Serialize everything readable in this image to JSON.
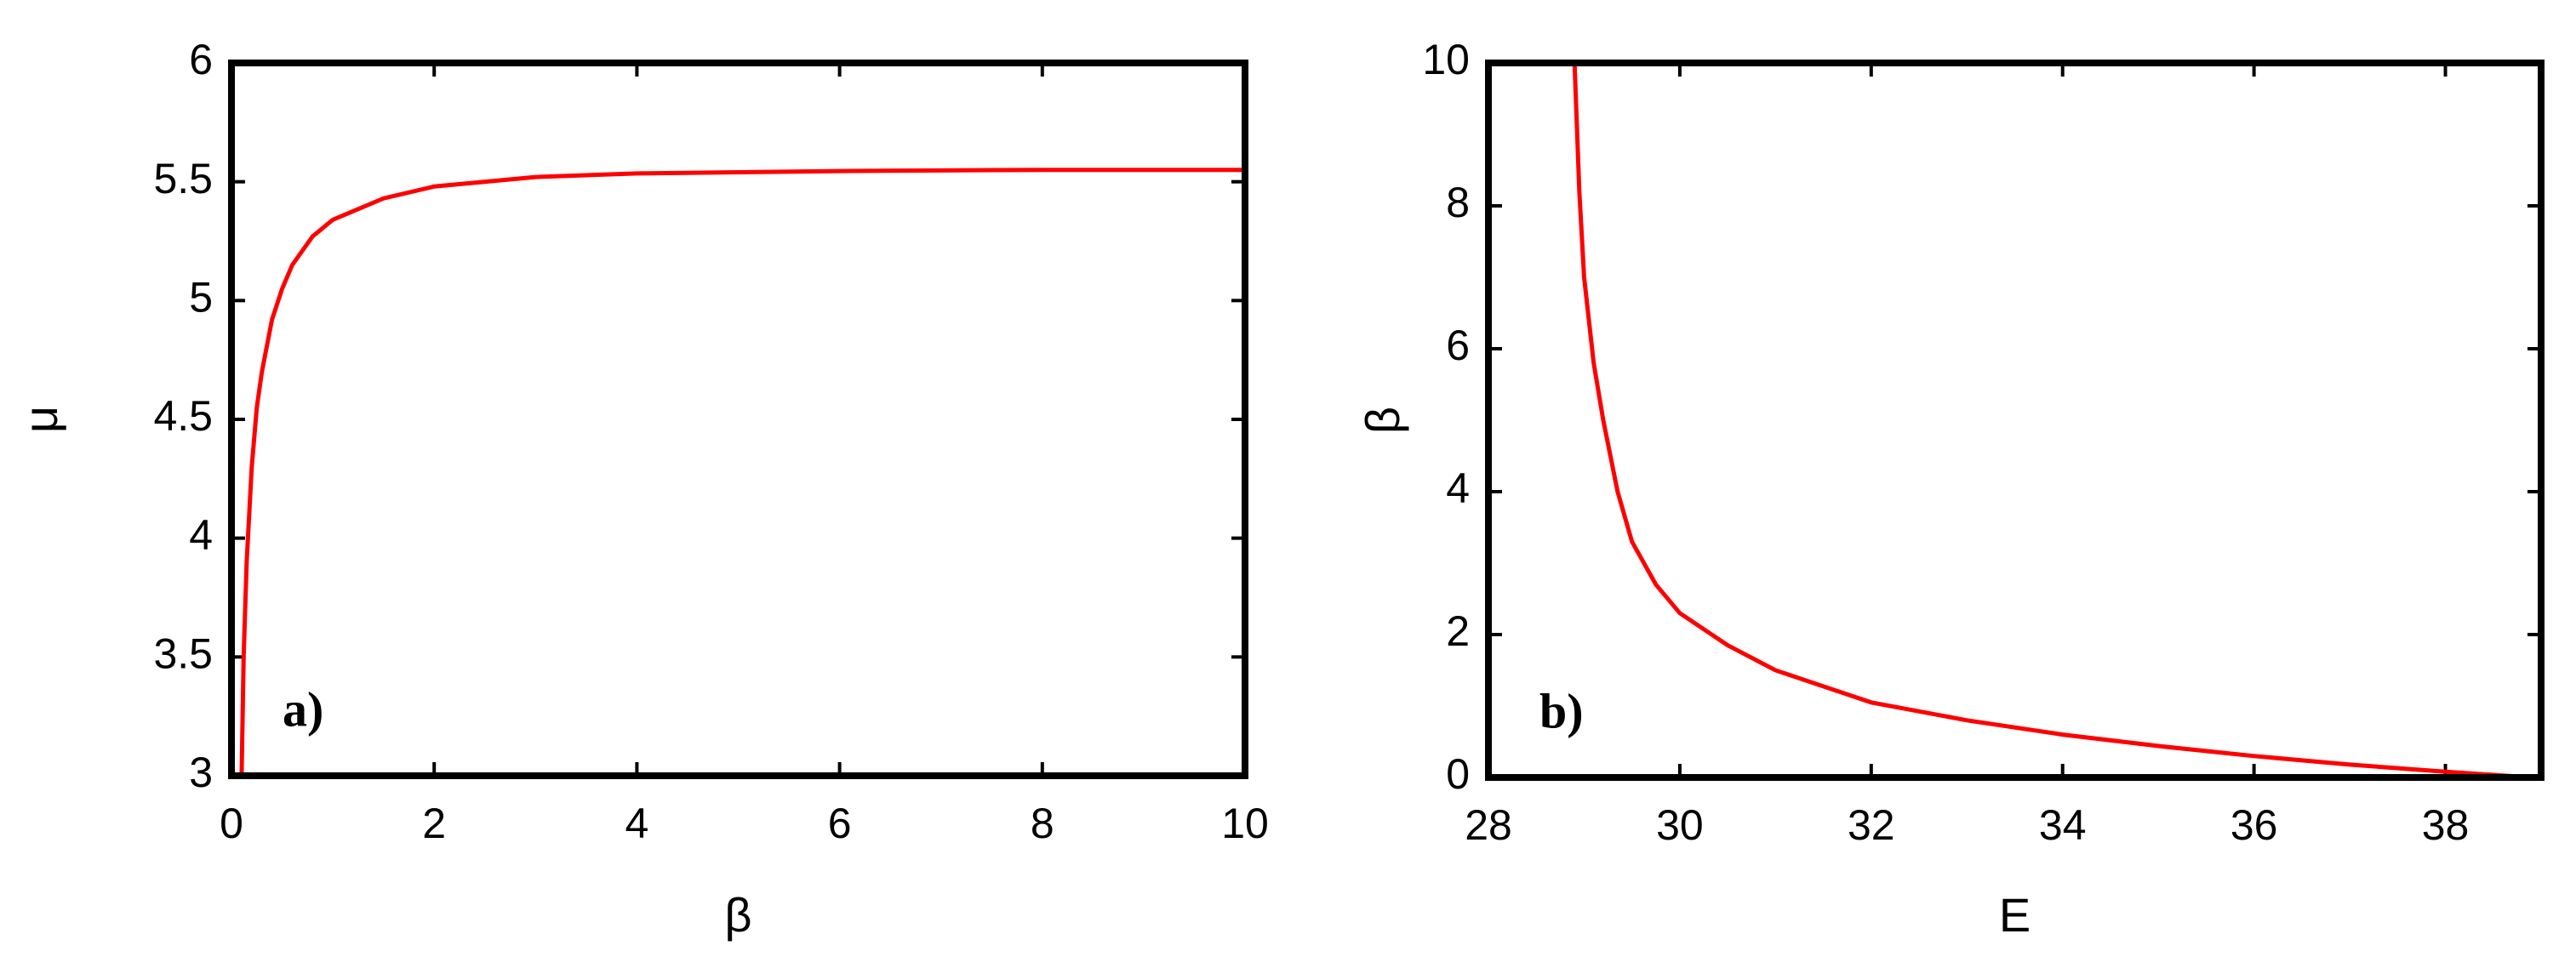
{
  "chart_data": [
    {
      "type": "line",
      "xlabel": "β",
      "ylabel": "μ",
      "annotation": "a)",
      "xlim": [
        0,
        10
      ],
      "ylim": [
        3,
        6
      ],
      "xticks": [
        0,
        2,
        4,
        6,
        8,
        10
      ],
      "yticks": [
        3,
        3.5,
        4,
        4.5,
        5,
        5.5,
        6
      ],
      "series": [
        {
          "color": "#ff0000",
          "x": [
            0.1,
            0.12,
            0.15,
            0.2,
            0.25,
            0.3,
            0.4,
            0.5,
            0.6,
            0.8,
            1,
            1.5,
            2,
            3,
            4,
            5,
            6,
            8,
            10
          ],
          "values": [
            3,
            3.5,
            3.9,
            4.3,
            4.55,
            4.7,
            4.92,
            5.05,
            5.15,
            5.27,
            5.34,
            5.43,
            5.48,
            5.52,
            5.535,
            5.54,
            5.545,
            5.55,
            5.55
          ]
        }
      ]
    },
    {
      "type": "line",
      "xlabel": "E",
      "ylabel": "β",
      "annotation": "b)",
      "xlim": [
        28,
        39
      ],
      "ylim": [
        0,
        10
      ],
      "xticks": [
        28,
        30,
        32,
        34,
        36,
        38
      ],
      "yticks": [
        0,
        2,
        4,
        6,
        8,
        10
      ],
      "series": [
        {
          "color": "#ff0000",
          "x": [
            28.9,
            28.95,
            29,
            29.1,
            29.2,
            29.35,
            29.5,
            29.75,
            30,
            30.5,
            31,
            32,
            33,
            34,
            35,
            36,
            37,
            38,
            38.9
          ],
          "values": [
            10,
            8.2,
            7,
            5.8,
            5,
            4,
            3.3,
            2.7,
            2.3,
            1.85,
            1.5,
            1.05,
            0.8,
            0.6,
            0.44,
            0.3,
            0.18,
            0.08,
            0
          ]
        }
      ]
    }
  ]
}
